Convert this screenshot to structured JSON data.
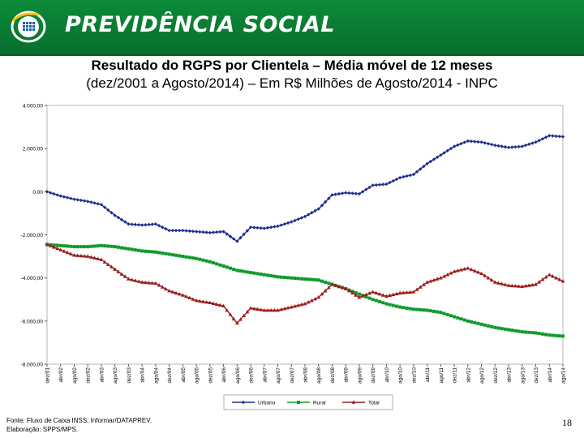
{
  "header": {
    "brand": "PREVIDÊNCIA SOCIAL",
    "colors": {
      "banner": "#0a7d34"
    }
  },
  "title": {
    "line1": "Resultado do RGPS por Clientela – Média móvel de 12 meses",
    "line2": "(dez/2001 a Agosto/2014) – Em R$ Milhões de Agosto/2014 - INPC"
  },
  "footer": {
    "source": "Fonte: Fluxo de Caixa INSS; Informar/DATAPREV.",
    "credit": "Elaboração: SPPS/MPS."
  },
  "page_number": "18",
  "chart_data": {
    "type": "line",
    "title": "Resultado do RGPS por Clientela – Média móvel de 12 meses",
    "xlabel": "",
    "ylabel": "R$ Milhões",
    "ylim": [
      -8000,
      4000
    ],
    "yticks": [
      4000,
      2000,
      0,
      -2000,
      -4000,
      -6000,
      -8000
    ],
    "ytick_labels": [
      "4.000,00",
      "2.000,00",
      "0,00",
      "-2.000,00",
      "-4.000,00",
      "-6.000,00",
      "-8.000,00"
    ],
    "grid": false,
    "legend": "bottom",
    "categories": [
      "dez/01",
      "abr/02",
      "ago/02",
      "dez/02",
      "abr/03",
      "ago/03",
      "dez/03",
      "abr/04",
      "ago/04",
      "dez/04",
      "abr/05",
      "ago/05",
      "dez/05",
      "abr/06",
      "ago/06",
      "dez/06",
      "abr/07",
      "ago/07",
      "dez/07",
      "abr/08",
      "ago/08",
      "dez/08",
      "abr/09",
      "ago/09",
      "dez/09",
      "abr/10",
      "ago/10",
      "dez/10",
      "abr/11",
      "ago/11",
      "dez/11",
      "abr/12",
      "ago/12",
      "dez/12",
      "abr/13",
      "ago/13",
      "dez/13",
      "abr/14",
      "ago/14"
    ],
    "series": [
      {
        "name": "Urbano",
        "color": "#1f2f8c",
        "marker": "diamond",
        "values": [
          0,
          -200,
          -350,
          -450,
          -600,
          -1100,
          -1500,
          -1550,
          -1500,
          -1800,
          -1800,
          -1850,
          -1900,
          -1850,
          -2300,
          -1650,
          -1700,
          -1600,
          -1400,
          -1150,
          -800,
          -150,
          -50,
          -100,
          300,
          350,
          650,
          800,
          1300,
          1700,
          2100,
          2350,
          2300,
          2150,
          2050,
          2100,
          2300,
          2600,
          2550
        ]
      },
      {
        "name": "Rural",
        "color": "#0e9a2a",
        "marker": "square",
        "values": [
          -2450,
          -2500,
          -2550,
          -2550,
          -2500,
          -2550,
          -2650,
          -2750,
          -2800,
          -2900,
          -3000,
          -3100,
          -3250,
          -3450,
          -3650,
          -3750,
          -3850,
          -3950,
          -4000,
          -4050,
          -4100,
          -4300,
          -4500,
          -4750,
          -5000,
          -5200,
          -5350,
          -5450,
          -5500,
          -5600,
          -5800,
          -6000,
          -6150,
          -6300,
          -6400,
          -6500,
          -6550,
          -6650,
          -6700
        ]
      },
      {
        "name": "Total",
        "color": "#9c1c1c",
        "marker": "triangle",
        "values": [
          -2450,
          -2700,
          -2950,
          -3000,
          -3150,
          -3600,
          -4050,
          -4200,
          -4250,
          -4600,
          -4800,
          -5050,
          -5150,
          -5300,
          -6100,
          -5400,
          -5500,
          -5500,
          -5350,
          -5200,
          -4900,
          -4300,
          -4500,
          -4900,
          -4650,
          -4850,
          -4700,
          -4650,
          -4200,
          -4000,
          -3700,
          -3550,
          -3800,
          -4200,
          -4350,
          -4400,
          -4300,
          -3850,
          -4150
        ]
      }
    ]
  }
}
